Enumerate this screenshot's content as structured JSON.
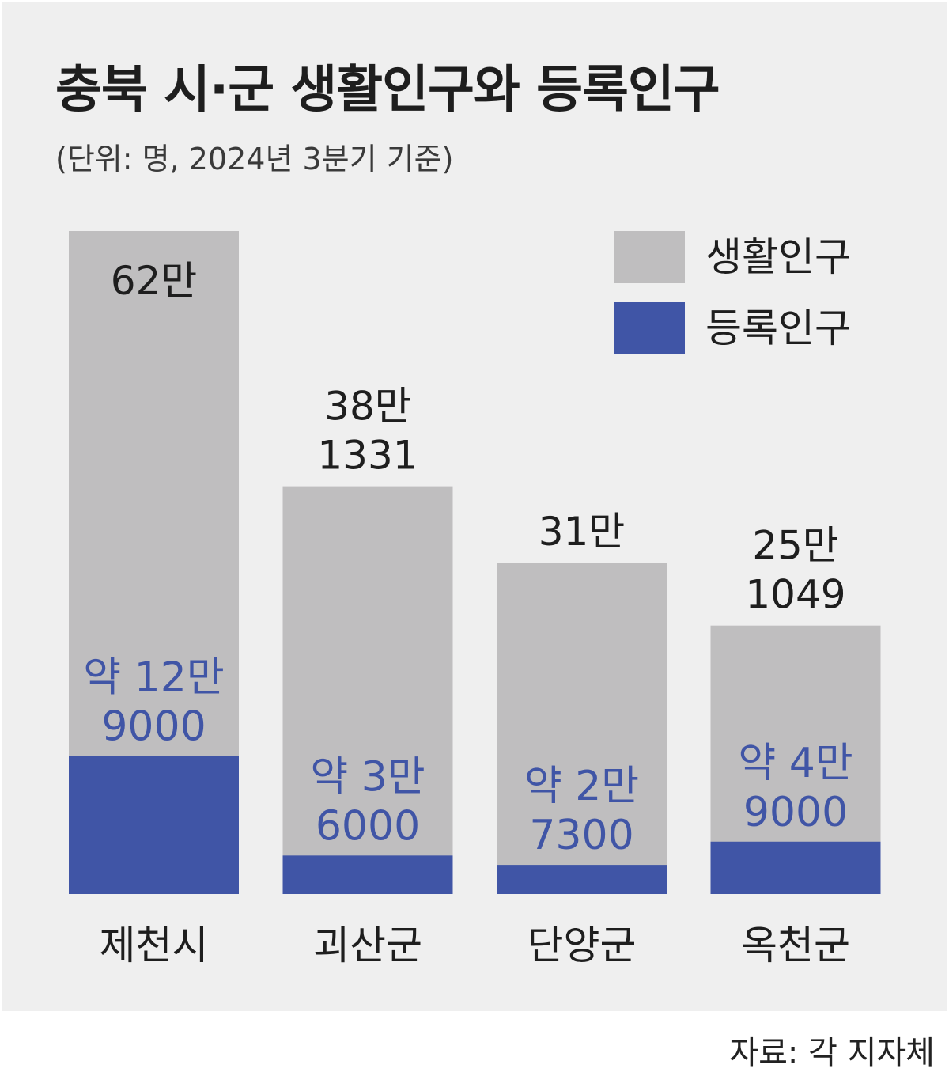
{
  "title": "충북 시·군 생활인구와 등록인구",
  "subtitle": "(단위: 명, 2024년 3분기 기준)",
  "source": "자료: 각 지자체",
  "colors": {
    "living": "#bfbebf",
    "registered": "#4055a6",
    "background": "#efefef",
    "registered_label": "#4055a6",
    "text": "#1e1e1e"
  },
  "chart_data": {
    "type": "bar",
    "stacked": "overlay",
    "categories": [
      "제천시",
      "괴산군",
      "단양군",
      "옥천군"
    ],
    "series": [
      {
        "name": "생활인구",
        "values": [
          620000,
          381331,
          310000,
          251049
        ],
        "labels": [
          [
            "62만"
          ],
          [
            "38만",
            "1331"
          ],
          [
            "31만"
          ],
          [
            "25만",
            "1049"
          ]
        ]
      },
      {
        "name": "등록인구",
        "values": [
          129000,
          36000,
          27300,
          49000
        ],
        "labels": [
          [
            "약 12만",
            "9000"
          ],
          [
            "약 3만",
            "6000"
          ],
          [
            "약 2만",
            "7300"
          ],
          [
            "약 4만",
            "9000"
          ]
        ]
      }
    ],
    "legend": {
      "position": "top-right",
      "entries": [
        "생활인구",
        "등록인구"
      ]
    },
    "grid": false,
    "ylim": [
      0,
      620000
    ]
  }
}
